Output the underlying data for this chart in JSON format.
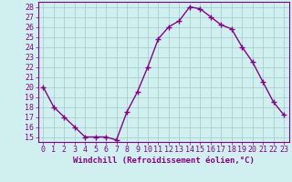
{
  "x": [
    0,
    1,
    2,
    3,
    4,
    5,
    6,
    7,
    8,
    9,
    10,
    11,
    12,
    13,
    14,
    15,
    16,
    17,
    18,
    19,
    20,
    21,
    22,
    23
  ],
  "y": [
    20,
    18,
    17,
    16,
    15,
    15,
    15,
    14.7,
    17.5,
    19.5,
    22,
    24.8,
    26,
    26.6,
    28,
    27.8,
    27,
    26.2,
    25.8,
    24,
    22.5,
    20.5,
    18.5,
    17.2
  ],
  "line_color": "#880088",
  "marker": "+",
  "marker_size": 4,
  "bg_color": "#d0f0f0",
  "grid_color": "#a0c8c8",
  "xlabel": "Windchill (Refroidissement éolien,°C)",
  "xlabel_fontsize": 6.5,
  "ylabel_ticks": [
    15,
    16,
    17,
    18,
    19,
    20,
    21,
    22,
    23,
    24,
    25,
    26,
    27,
    28
  ],
  "xlim": [
    -0.5,
    23.5
  ],
  "ylim": [
    14.5,
    28.5
  ],
  "tick_fontsize": 6,
  "line_width": 1.0,
  "spine_color": "#800080"
}
